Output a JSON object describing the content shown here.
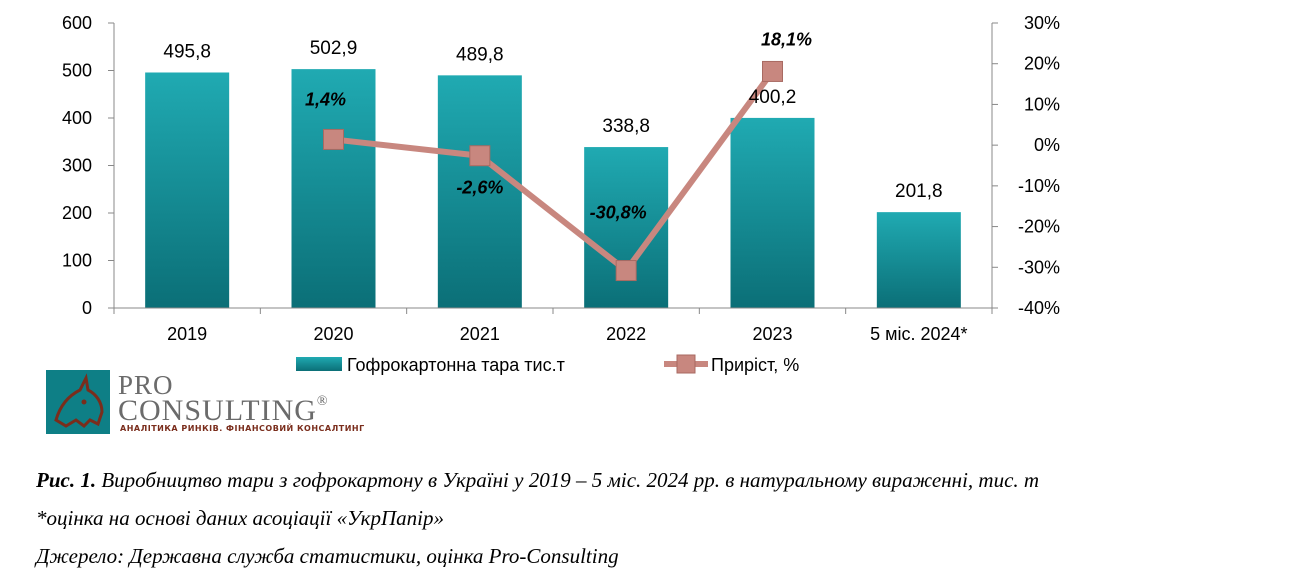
{
  "chart_data": {
    "type": "bar",
    "categories": [
      "2019",
      "2020",
      "2021",
      "2022",
      "2023",
      "5 міс. 2024*"
    ],
    "series": [
      {
        "name": "Гофрокартонна тара тис.т",
        "type": "bar",
        "axis": "left",
        "values": [
          495.8,
          502.9,
          489.8,
          338.8,
          400.2,
          201.8
        ],
        "labels": [
          "495,8",
          "502,9",
          "489,8",
          "338,8",
          "400,2",
          "201,8"
        ],
        "color": "#169aa2"
      },
      {
        "name": "Приріст, %",
        "type": "line",
        "axis": "right",
        "values": [
          null,
          1.4,
          -2.6,
          -30.8,
          18.1,
          null
        ],
        "labels": [
          "",
          "1,4%",
          "-2,6%",
          "-30,8%",
          "18,1%",
          ""
        ],
        "color": "#c8877f"
      }
    ],
    "y_left": {
      "min": 0,
      "max": 600,
      "ticks": [
        "0",
        "100",
        "200",
        "300",
        "400",
        "500",
        "600"
      ]
    },
    "y_right": {
      "min": -40,
      "max": 30,
      "ticks": [
        "-40%",
        "-30%",
        "-20%",
        "-10%",
        "0%",
        "10%",
        "20%",
        "30%"
      ]
    },
    "grid": false,
    "legend_position": "bottom"
  },
  "logo": {
    "line1": "PRO",
    "line2": "CONSULTING",
    "registered": "®",
    "tagline": "АНАЛІТИКА РИНКІВ. ФІНАНСОВИЙ КОНСАЛТИНГ",
    "color": "#0e7f86"
  },
  "caption": {
    "fig_label": "Рис. 1.",
    "title": " Виробництво тари з гофрокартону в Україні у 2019 – 5 міс. 2024 рр. в натуральному вираженні, тис. т",
    "note": "*оцінка на основі даних асоціації «УкрПапір»",
    "source": "Джерело: Державна служба статистики, оцінка Pro-Consulting"
  }
}
